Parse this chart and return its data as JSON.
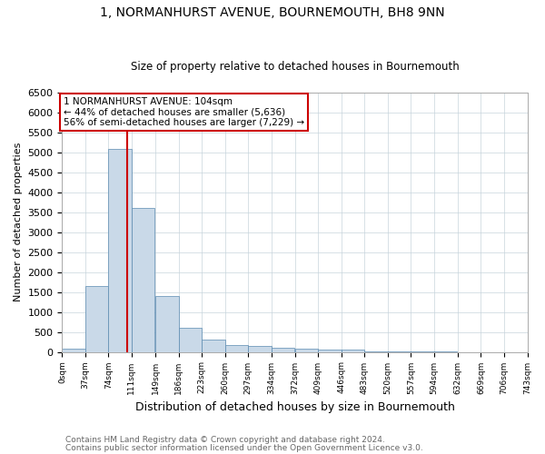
{
  "title": "1, NORMANHURST AVENUE, BOURNEMOUTH, BH8 9NN",
  "subtitle": "Size of property relative to detached houses in Bournemouth",
  "xlabel": "Distribution of detached houses by size in Bournemouth",
  "ylabel": "Number of detached properties",
  "bin_edges": [
    0,
    37,
    74,
    111,
    149,
    186,
    223,
    260,
    297,
    334,
    372,
    409,
    446,
    483,
    520,
    557,
    594,
    632,
    669,
    706,
    743
  ],
  "bar_heights": [
    75,
    1650,
    5070,
    3600,
    1400,
    615,
    310,
    165,
    145,
    110,
    70,
    55,
    60,
    5,
    3,
    2,
    2,
    1,
    1,
    1
  ],
  "bar_color": "#c9d9e8",
  "bar_edge_color": "#5a8ab0",
  "property_sqm": 104,
  "annotation_line1": "1 NORMANHURST AVENUE: 104sqm",
  "annotation_line2": "← 44% of detached houses are smaller (5,636)",
  "annotation_line3": "56% of semi-detached houses are larger (7,229) →",
  "red_line_color": "#cc0000",
  "annotation_box_color": "#cc0000",
  "ylim": [
    0,
    6500
  ],
  "yticks": [
    0,
    500,
    1000,
    1500,
    2000,
    2500,
    3000,
    3500,
    4000,
    4500,
    5000,
    5500,
    6000,
    6500
  ],
  "footer_line1": "Contains HM Land Registry data © Crown copyright and database right 2024.",
  "footer_line2": "Contains public sector information licensed under the Open Government Licence v3.0.",
  "background_color": "#ffffff",
  "grid_color": "#c8d4dc"
}
